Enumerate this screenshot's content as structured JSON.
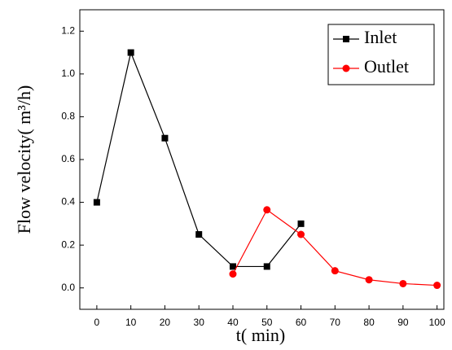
{
  "chart_data": {
    "type": "line",
    "x_label": "t(  min)",
    "y_label": "Flow velocity(  m³/h)",
    "series": [
      {
        "name": "Inlet",
        "color": "#000000",
        "marker": "square",
        "x": [
          0,
          10,
          20,
          30,
          40,
          50,
          60
        ],
        "values": [
          0.4,
          1.1,
          0.7,
          0.25,
          0.1,
          0.1,
          0.3
        ]
      },
      {
        "name": "Outlet",
        "color": "#ff0000",
        "marker": "circle",
        "x": [
          40,
          50,
          60,
          70,
          80,
          90,
          100
        ],
        "values": [
          0.065,
          0.365,
          0.25,
          0.08,
          0.038,
          0.02,
          0.012
        ]
      }
    ],
    "xlim": [
      -5,
      102
    ],
    "xticks": [
      0,
      10,
      20,
      30,
      40,
      50,
      60,
      70,
      80,
      90,
      100
    ],
    "ylim": [
      -0.1,
      1.3
    ],
    "yticks": [
      {
        "value": 0,
        "label": "0.0"
      },
      0.2,
      0.4,
      0.6,
      0.8,
      {
        "value": 1,
        "label": "1.0"
      },
      1.2
    ],
    "legend": "top-right"
  }
}
